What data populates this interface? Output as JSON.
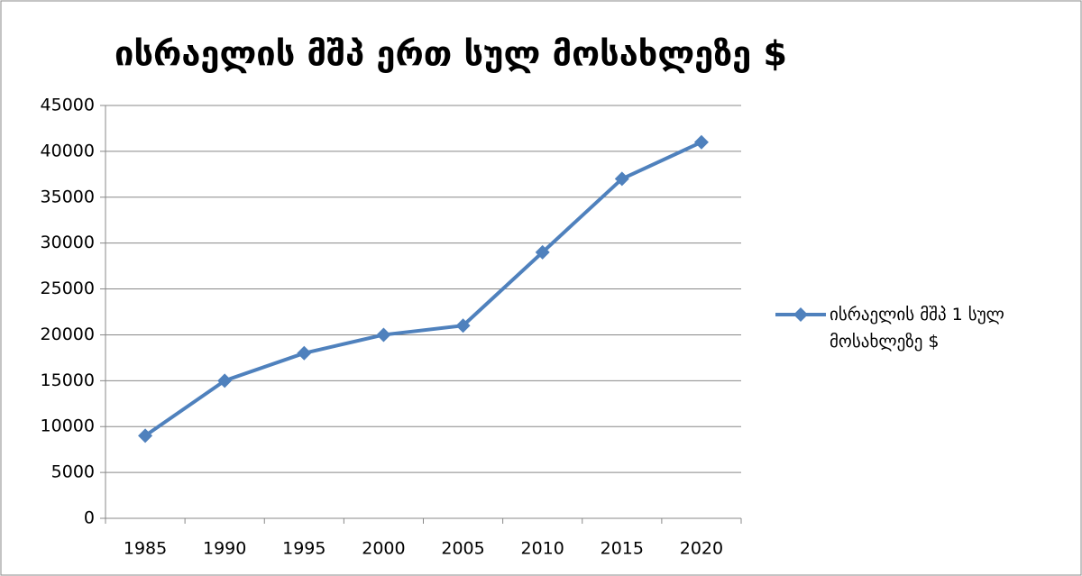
{
  "chart_data": {
    "type": "line",
    "title": "ისრაელის მშპ ერთ სულ მოსახლეზე $",
    "categories": [
      "1985",
      "1990",
      "1995",
      "2000",
      "2005",
      "2010",
      "2015",
      "2020"
    ],
    "series": [
      {
        "name": "ისრაელის მშპ 1 სულ მოსახლეზე $",
        "color": "#4f81bd",
        "values": [
          9000,
          15000,
          18000,
          20000,
          21000,
          29000,
          37000,
          41000
        ]
      }
    ],
    "ylim": [
      0,
      45000
    ],
    "yticks": [
      0,
      5000,
      10000,
      15000,
      20000,
      25000,
      30000,
      35000,
      40000,
      45000
    ],
    "grid": true,
    "legend": "right"
  }
}
